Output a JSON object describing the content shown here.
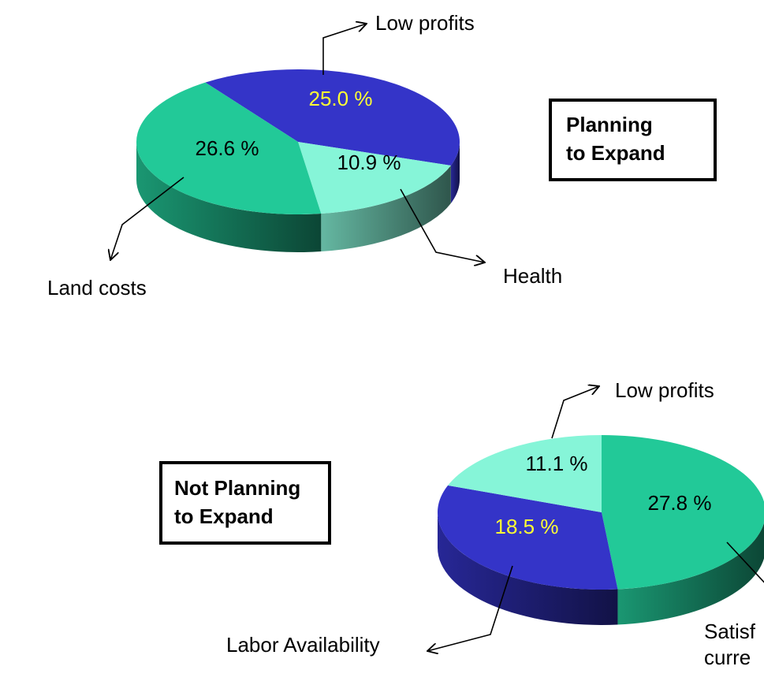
{
  "chart_data": [
    {
      "type": "pie3d",
      "categories": [
        "Low profits",
        "Health",
        "Land costs"
      ],
      "values": [
        25.0,
        10.9,
        26.6
      ],
      "value_labels": [
        "25.0 %",
        "10.9 %",
        "26.6 %"
      ],
      "colors": [
        "#3434c8",
        "#86f5d8",
        "#22c998"
      ],
      "value_label_colors": [
        "#ffff33",
        "#000000",
        "#000000"
      ],
      "annotation": [
        "Planning",
        "to Expand"
      ]
    },
    {
      "type": "pie3d",
      "categories": [
        [
          "Satisf",
          "curre"
        ],
        "Labor Availability",
        "Low profits"
      ],
      "values": [
        27.8,
        18.5,
        11.1
      ],
      "value_labels": [
        "27.8 %",
        "18.5 %",
        "11.1 %"
      ],
      "colors": [
        "#22c998",
        "#3434c8",
        "#86f5d8"
      ],
      "value_label_colors": [
        "#000000",
        "#ffff33",
        "#000000"
      ],
      "annotation": [
        "Not Planning",
        "to Expand"
      ]
    }
  ]
}
